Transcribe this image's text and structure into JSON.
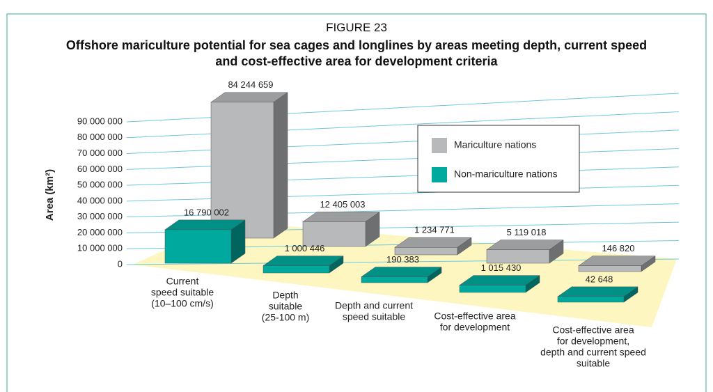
{
  "chart_data": {
    "type": "bar3d",
    "figure_label": "FIGURE 23",
    "title": "Offshore mariculture potential for sea cages and longlines by areas meeting depth, current speed and cost-effective area for development criteria",
    "y_label": "Area (km²)",
    "categories": [
      [
        "Current",
        "speed suitable",
        "(10–100 cm/s)"
      ],
      [
        "Depth",
        "suitable",
        "(25-100 m)"
      ],
      [
        "Depth and current",
        "speed suitable"
      ],
      [
        "Cost-effective area",
        "for development"
      ],
      [
        "Cost-effective area",
        "for development,",
        "depth and current speed",
        "suitable"
      ]
    ],
    "series": [
      {
        "name": "Mariculture nations",
        "color": "#b8b9bb",
        "values": [
          84244659,
          12405003,
          1234771,
          5119018,
          146820
        ],
        "value_labels": [
          "84 244 659",
          "12 405 003",
          "1 234 771",
          "5 119 018",
          "146 820"
        ]
      },
      {
        "name": "Non-mariculture nations",
        "color": "#00a99d",
        "values": [
          16790002,
          1000446,
          190383,
          1015430,
          42648
        ],
        "value_labels": [
          "16 790 002",
          "1 000 446",
          "190 383",
          "1 015 430",
          "42 648"
        ]
      }
    ],
    "ylim": [
      0,
      90000000
    ],
    "yticks": [
      0,
      {
        "value": 10000000,
        "label": "10 000 000"
      },
      {
        "value": 20000000,
        "label": "20 000 000"
      },
      {
        "value": 30000000,
        "label": "30 000 000"
      },
      {
        "value": 40000000,
        "label": "40 000 000"
      },
      {
        "value": 50000000,
        "label": "50 000 000"
      },
      {
        "value": 60000000,
        "label": "60 000 000"
      },
      {
        "value": 70000000,
        "label": "70 000 000"
      },
      {
        "value": 80000000,
        "label": "80 000 000"
      },
      {
        "value": 90000000,
        "label": "90 000 000"
      }
    ],
    "grid": true,
    "legend": "upper right"
  }
}
